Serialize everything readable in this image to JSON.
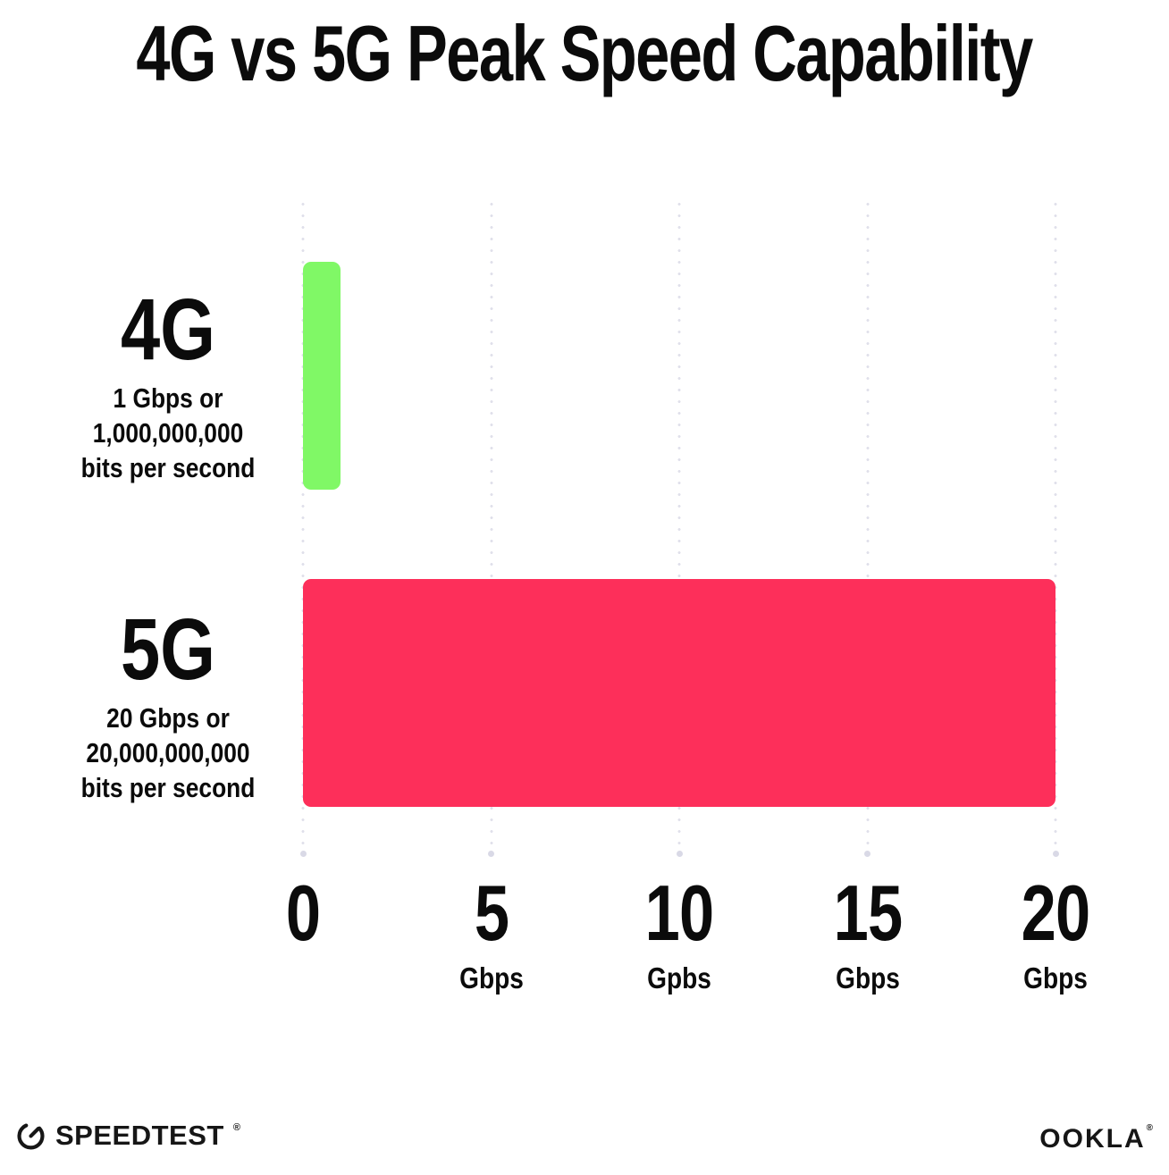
{
  "title": "4G vs 5G Peak Speed Capability",
  "chart_data": {
    "type": "bar",
    "orientation": "horizontal",
    "title": "4G vs 5G Peak Speed Capability",
    "categories": [
      "4G",
      "5G"
    ],
    "values": [
      1,
      20
    ],
    "value_unit": "Gbps",
    "xlabel": "",
    "ylabel": "",
    "xlim": [
      0,
      20
    ],
    "grid": "dotted-vertical-lines",
    "legend_position": "none",
    "bars": [
      {
        "category": "4G",
        "value": 1,
        "color": "#80F866",
        "sublabel_lines": [
          "1 Gbps or",
          "1,000,000,000",
          "bits per second"
        ]
      },
      {
        "category": "5G",
        "value": 20,
        "color": "#FD2F5A",
        "sublabel_lines": [
          "20 Gbps or",
          "20,000,000,000",
          "bits per second"
        ]
      }
    ],
    "xticks": [
      {
        "value": 0,
        "label": "0",
        "unit": ""
      },
      {
        "value": 5,
        "label": "5",
        "unit": "Gbps"
      },
      {
        "value": 10,
        "label": "10",
        "unit": "Gpbs"
      },
      {
        "value": 15,
        "label": "15",
        "unit": "Gbps"
      },
      {
        "value": 20,
        "label": "20",
        "unit": "Gbps"
      }
    ]
  },
  "footer": {
    "speedtest_logo_text": "SPEEDTEST",
    "speedtest_reg_mark": "®",
    "ookla_logo_text": "OOKLA",
    "ookla_reg_mark": "®"
  },
  "colors": {
    "bar_4g": "#80F866",
    "bar_5g": "#FD2F5A",
    "gridline": "#DFDFEA",
    "text": "#0B0B0B",
    "background": "#FFFFFF"
  }
}
